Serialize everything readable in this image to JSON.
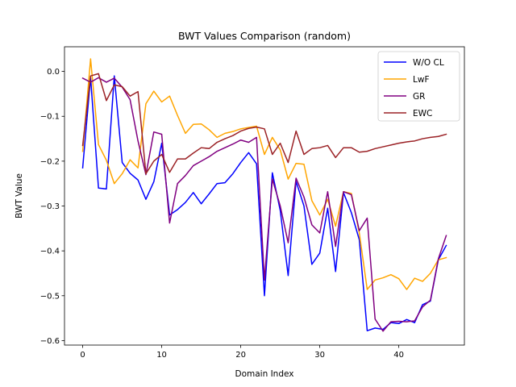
{
  "chart_data": {
    "type": "line",
    "title": "BWT Values Comparison (random)",
    "xlabel": "Domain Index",
    "ylabel": "BWT Value",
    "xlim": [
      -2.3,
      48.3
    ],
    "ylim": [
      -0.61,
      0.055
    ],
    "xticks": [
      0,
      10,
      20,
      30,
      40
    ],
    "yticks": [
      0.0,
      -0.1,
      -0.2,
      -0.3,
      -0.4,
      -0.5,
      -0.6
    ],
    "ytick_labels": [
      "0.0",
      "−0.1",
      "−0.2",
      "−0.3",
      "−0.4",
      "−0.5",
      "−0.6"
    ],
    "grid": false,
    "legend_position": "top-right",
    "series": [
      {
        "name": "W/O CL",
        "color": "#0000ff",
        "values": [
          -0.215,
          -0.013,
          -0.26,
          -0.262,
          -0.01,
          -0.203,
          -0.227,
          -0.242,
          -0.285,
          -0.246,
          -0.16,
          -0.32,
          -0.308,
          -0.292,
          -0.27,
          -0.295,
          -0.273,
          -0.25,
          -0.248,
          -0.228,
          -0.203,
          -0.181,
          -0.206,
          -0.5,
          -0.226,
          -0.31,
          -0.455,
          -0.245,
          -0.3,
          -0.43,
          -0.405,
          -0.305,
          -0.446,
          -0.27,
          -0.315,
          -0.375,
          -0.578,
          -0.572,
          -0.575,
          -0.56,
          -0.562,
          -0.553,
          -0.56,
          -0.52,
          -0.512,
          -0.42,
          -0.388
        ]
      },
      {
        "name": "LwF",
        "color": "#ffa500",
        "values": [
          -0.178,
          0.028,
          -0.163,
          -0.198,
          -0.25,
          -0.228,
          -0.197,
          -0.215,
          -0.072,
          -0.044,
          -0.068,
          -0.055,
          -0.098,
          -0.138,
          -0.118,
          -0.117,
          -0.13,
          -0.147,
          -0.138,
          -0.134,
          -0.128,
          -0.125,
          -0.122,
          -0.185,
          -0.147,
          -0.175,
          -0.24,
          -0.205,
          -0.207,
          -0.288,
          -0.32,
          -0.285,
          -0.345,
          -0.268,
          -0.272,
          -0.36,
          -0.486,
          -0.465,
          -0.46,
          -0.453,
          -0.462,
          -0.486,
          -0.461,
          -0.468,
          -0.45,
          -0.42,
          -0.415
        ]
      },
      {
        "name": "GR",
        "color": "#800080",
        "values": [
          -0.015,
          -0.024,
          -0.014,
          -0.024,
          -0.015,
          -0.035,
          -0.063,
          -0.155,
          -0.23,
          -0.135,
          -0.14,
          -0.338,
          -0.25,
          -0.232,
          -0.21,
          -0.2,
          -0.19,
          -0.178,
          -0.17,
          -0.162,
          -0.153,
          -0.158,
          -0.147,
          -0.465,
          -0.24,
          -0.3,
          -0.382,
          -0.238,
          -0.28,
          -0.342,
          -0.36,
          -0.268,
          -0.39,
          -0.268,
          -0.275,
          -0.355,
          -0.327,
          -0.552,
          -0.579,
          -0.558,
          -0.557,
          -0.558,
          -0.556,
          -0.525,
          -0.51,
          -0.418,
          -0.366
        ]
      },
      {
        "name": "EWC",
        "color": "#9b2226",
        "values": [
          -0.165,
          -0.01,
          -0.005,
          -0.065,
          -0.03,
          -0.034,
          -0.055,
          -0.045,
          -0.228,
          -0.2,
          -0.185,
          -0.225,
          -0.195,
          -0.195,
          -0.182,
          -0.17,
          -0.172,
          -0.158,
          -0.15,
          -0.143,
          -0.133,
          -0.127,
          -0.124,
          -0.128,
          -0.185,
          -0.16,
          -0.203,
          -0.133,
          -0.185,
          -0.172,
          -0.17,
          -0.165,
          -0.192,
          -0.17,
          -0.17,
          -0.18,
          -0.178,
          -0.172,
          -0.168,
          -0.164,
          -0.16,
          -0.157,
          -0.155,
          -0.15,
          -0.147,
          -0.145,
          -0.14
        ]
      }
    ]
  }
}
